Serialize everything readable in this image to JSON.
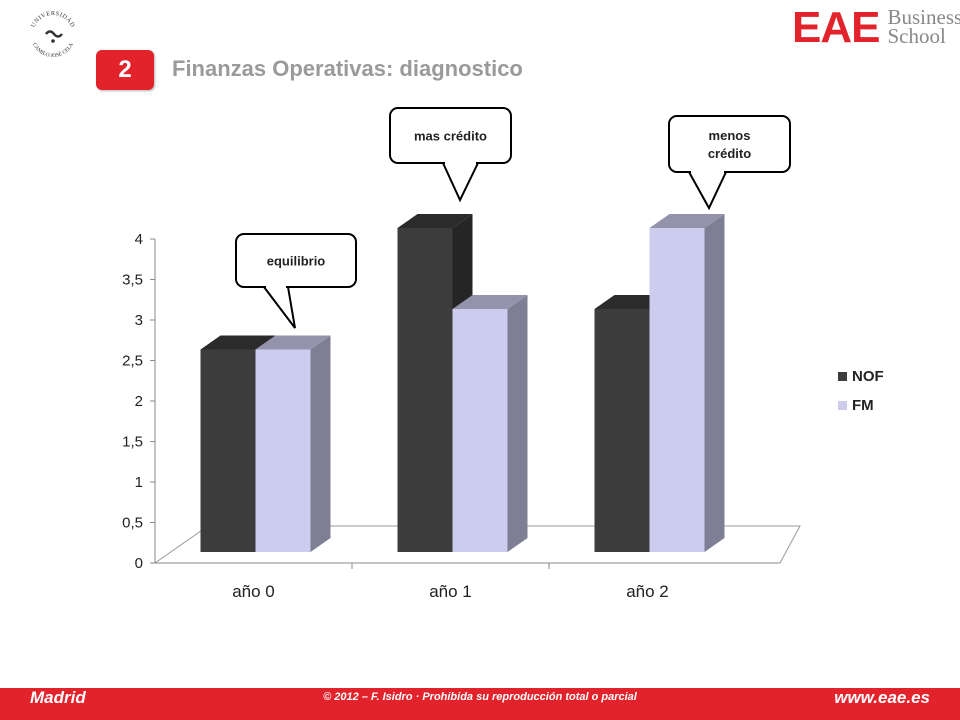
{
  "header": {
    "university_seal_text": "UNIVERSIDAD CAMILO JOSÉ CELA",
    "eae_logo_main": "EAE",
    "eae_logo_line1": "Business",
    "eae_logo_line2": "School",
    "slide_number": "2",
    "title": "Finanzas Operativas: diagnostico"
  },
  "chart_data": {
    "type": "bar",
    "categories": [
      "año 0",
      "año 1",
      "año 2"
    ],
    "series": [
      {
        "name": "NOF",
        "values": [
          2.5,
          4,
          3
        ],
        "color": "#3c3c3c"
      },
      {
        "name": "FM",
        "values": [
          2.5,
          3,
          4
        ],
        "color": "#ccccee"
      }
    ],
    "yticks": [
      "0",
      "0,5",
      "1",
      "1,5",
      "2",
      "2,5",
      "3",
      "3,5",
      "4"
    ],
    "ylim": [
      0,
      4
    ],
    "legend_position": "right",
    "grid": false
  },
  "callouts": [
    {
      "text": [
        "equilibrio"
      ]
    },
    {
      "text": [
        "mas crédito"
      ]
    },
    {
      "text": [
        "menos",
        "crédito"
      ]
    }
  ],
  "footer": {
    "left": "Madrid",
    "center": "© 2012 – F. Isidro · Prohibida su reproducción total o parcial",
    "right": "www.eae.es"
  },
  "colors": {
    "brand_red": "#e3232b",
    "title_gray": "#9a9a9a"
  }
}
